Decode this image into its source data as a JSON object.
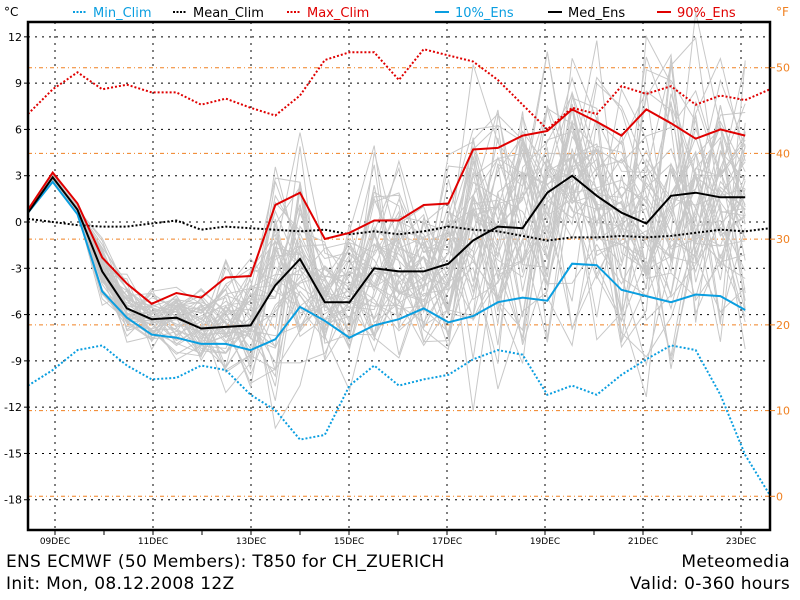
{
  "chart_data": {
    "type": "line",
    "title": "ENS ECMWF (50 Members): T850 for CH_ZUERICH",
    "init": "Init: Mon, 08.12.2008 12Z",
    "source": "Meteomedia",
    "valid": "Valid: 0-360 hours",
    "members": 50,
    "ylabel_left": "°C",
    "ylabel_right": "°F",
    "ylim": [
      -19.3,
      13
    ],
    "yticks_c": [
      12,
      9,
      6,
      3,
      0,
      -3,
      -6,
      -9,
      -12,
      -15,
      -18
    ],
    "yticks_f": [
      50,
      40,
      30,
      20,
      10,
      0
    ],
    "x_step_hours": 12,
    "x_tick_labels": [
      "09DEC",
      "11DEC",
      "13DEC",
      "15DEC",
      "17DEC",
      "19DEC",
      "21DEC",
      "23DEC"
    ],
    "legend": [
      {
        "name": "Min_Clim",
        "color": "#0a9ee0",
        "style": "dotted"
      },
      {
        "name": "Mean_Clim",
        "color": "#000000",
        "style": "dotted"
      },
      {
        "name": "Max_Clim",
        "color": "#e00000",
        "style": "dotted"
      },
      {
        "name": "10%_Ens",
        "color": "#0a9ee0",
        "style": "solid"
      },
      {
        "name": "Med_Ens",
        "color": "#000000",
        "style": "solid"
      },
      {
        "name": "90%_Ens",
        "color": "#e00000",
        "style": "solid"
      }
    ],
    "legend_position": "top",
    "series": [
      {
        "name": "Min_Clim",
        "values": [
          -10.6,
          -9.6,
          -8.3,
          -8.0,
          -9.3,
          -10.2,
          -10.1,
          -9.3,
          -9.6,
          -11.2,
          -12.2,
          -14.1,
          -13.8,
          -10.6,
          -9.3,
          -10.6,
          -10.2,
          -9.9,
          -8.9,
          -8.3,
          -8.6,
          -11.2,
          -10.6,
          -11.2,
          -9.9,
          -8.9,
          -8.0,
          -8.3,
          -11.2,
          -15.1,
          -17.7
        ]
      },
      {
        "name": "Mean_Clim",
        "values": [
          0.2,
          0.0,
          -0.2,
          -0.3,
          -0.3,
          -0.1,
          0.1,
          -0.5,
          -0.3,
          -0.4,
          -0.5,
          -0.6,
          -0.5,
          -0.8,
          -0.6,
          -0.8,
          -0.6,
          -0.3,
          -0.5,
          -0.6,
          -0.9,
          -1.2,
          -1.0,
          -1.0,
          -0.9,
          -1.0,
          -0.9,
          -0.7,
          -0.5,
          -0.6,
          -0.4
        ]
      },
      {
        "name": "Max_Clim",
        "values": [
          7.0,
          8.6,
          9.7,
          8.6,
          8.9,
          8.4,
          8.4,
          7.6,
          8.0,
          7.4,
          6.9,
          8.2,
          10.5,
          11.0,
          11.0,
          9.2,
          11.2,
          10.8,
          10.4,
          9.2,
          7.6,
          6.0,
          7.4,
          7.0,
          8.8,
          8.3,
          8.8,
          7.6,
          8.2,
          7.9,
          8.6
        ]
      },
      {
        "name": "10%_Ens",
        "values": [
          0.6,
          2.6,
          0.5,
          -4.5,
          -6.2,
          -7.3,
          -7.5,
          -7.9,
          -7.9,
          -8.3,
          -7.6,
          -5.5,
          -6.4,
          -7.5,
          -6.7,
          -6.3,
          -5.6,
          -6.5,
          -6.1,
          -5.2,
          -4.9,
          -5.1,
          -2.7,
          -2.8,
          -4.4,
          -4.8,
          -5.2,
          -4.7,
          -4.8,
          -5.7
        ]
      },
      {
        "name": "Med_Ens",
        "values": [
          0.6,
          2.9,
          0.8,
          -3.2,
          -5.6,
          -6.3,
          -6.2,
          -6.9,
          -6.8,
          -6.7,
          -4.1,
          -2.4,
          -5.2,
          -5.2,
          -3.0,
          -3.2,
          -3.2,
          -2.7,
          -1.2,
          -0.3,
          -0.4,
          1.9,
          3.0,
          1.7,
          0.6,
          -0.1,
          1.7,
          1.9,
          1.6,
          1.6
        ]
      },
      {
        "name": "90%_Ens",
        "values": [
          0.8,
          3.2,
          1.2,
          -2.3,
          -4.0,
          -5.3,
          -4.6,
          -4.9,
          -3.6,
          -3.5,
          1.1,
          1.9,
          -1.1,
          -0.7,
          0.1,
          0.1,
          1.1,
          1.2,
          4.7,
          4.8,
          5.6,
          5.9,
          7.3,
          6.5,
          5.6,
          7.3,
          6.4,
          5.4,
          6.0,
          5.6
        ]
      }
    ]
  }
}
